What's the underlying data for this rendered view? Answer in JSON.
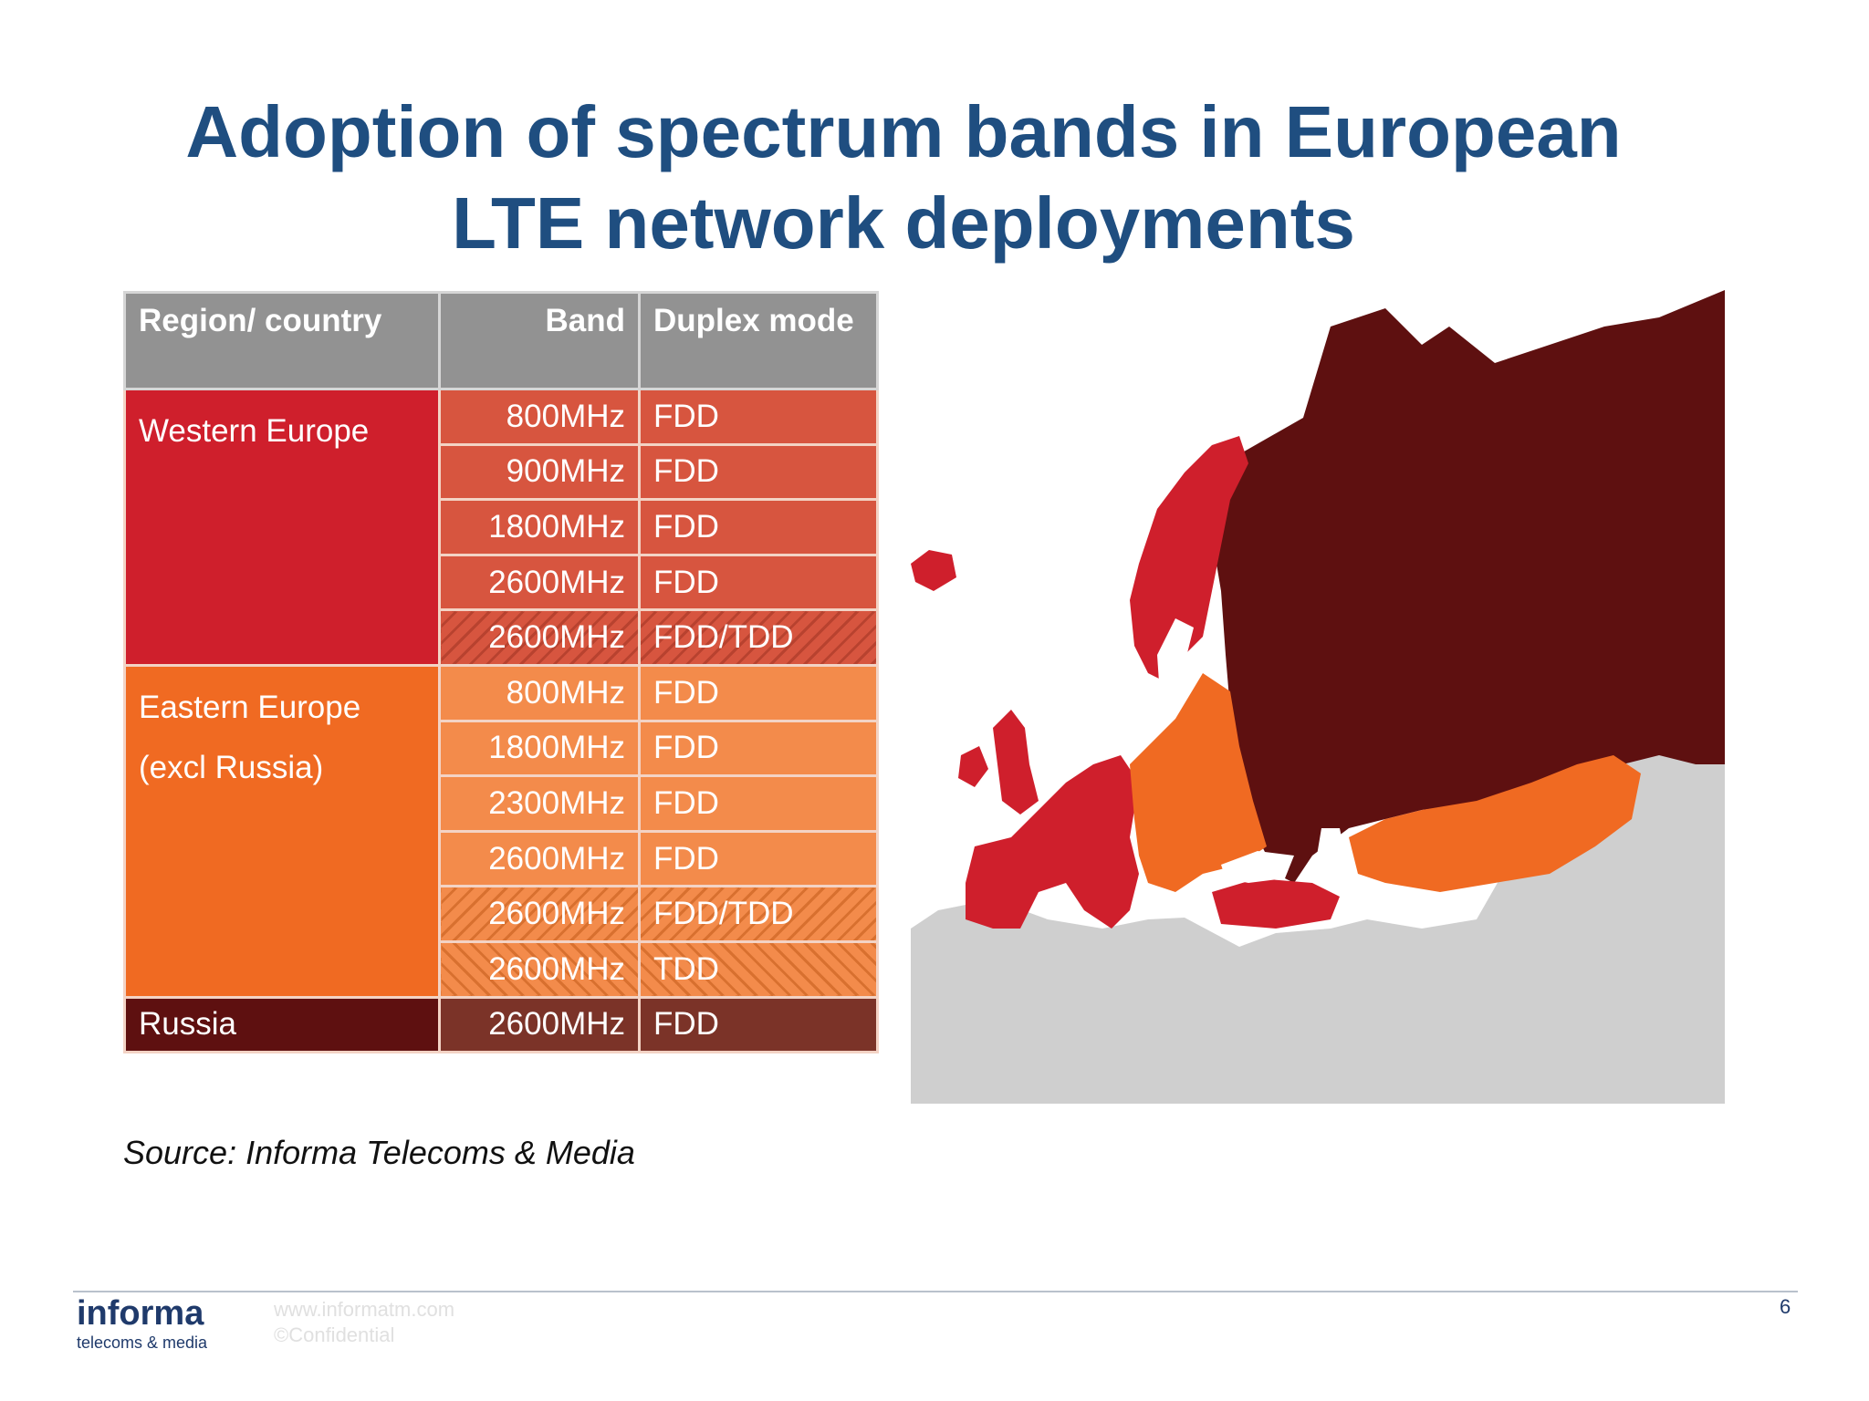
{
  "title": {
    "line1": "Adoption of spectrum bands in European",
    "line2": "LTE network deployments"
  },
  "table": {
    "headers": {
      "region": "Region/ country",
      "band": "Band",
      "duplex": "Duplex mode"
    },
    "groups": [
      {
        "region": [
          "Western Europe"
        ],
        "rows": [
          {
            "band": "800MHz",
            "duplex": "FDD"
          },
          {
            "band": "900MHz",
            "duplex": "FDD"
          },
          {
            "band": "1800MHz",
            "duplex": "FDD"
          },
          {
            "band": "2600MHz",
            "duplex": "FDD"
          },
          {
            "band": "2600MHz",
            "duplex": "FDD/TDD"
          }
        ]
      },
      {
        "region": [
          "Eastern Europe",
          "(excl Russia)"
        ],
        "rows": [
          {
            "band": "800MHz",
            "duplex": "FDD"
          },
          {
            "band": "1800MHz",
            "duplex": "FDD"
          },
          {
            "band": "2300MHz",
            "duplex": "FDD"
          },
          {
            "band": "2600MHz",
            "duplex": "FDD"
          },
          {
            "band": "2600MHz",
            "duplex": "FDD/TDD"
          },
          {
            "band": "2600MHz",
            "duplex": "TDD"
          }
        ]
      },
      {
        "region": [
          "Russia"
        ],
        "rows": [
          {
            "band": "2600MHz",
            "duplex": "FDD"
          }
        ]
      }
    ]
  },
  "colors": {
    "western": "#cf1f2c",
    "eastern": "#f06a22",
    "russia": "#5e1010",
    "other": "#cfcfcf"
  },
  "source": "Source: Informa Telecoms & Media",
  "footer": {
    "logo_main": "informa",
    "logo_sub": "telecoms & media",
    "website": "www.informatm.com",
    "confidential": "©Confidential",
    "page_number": "6"
  }
}
